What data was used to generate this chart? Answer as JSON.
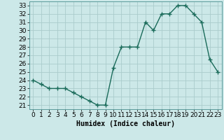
{
  "x": [
    0,
    1,
    2,
    3,
    4,
    5,
    6,
    7,
    8,
    9,
    10,
    11,
    12,
    13,
    14,
    15,
    16,
    17,
    18,
    19,
    20,
    21,
    22,
    23
  ],
  "y": [
    24,
    23.5,
    23,
    23,
    23,
    22.5,
    22,
    21.5,
    21,
    21,
    25.5,
    28,
    28,
    28,
    31,
    30,
    32,
    32,
    33,
    33,
    32,
    31,
    26.5,
    25
  ],
  "line_color": "#1a6b5a",
  "marker": "+",
  "marker_size": 4,
  "marker_lw": 1.0,
  "bg_color": "#cce8e8",
  "grid_major_color": "#aacccc",
  "grid_minor_color": "#cce0e0",
  "xlabel": "Humidex (Indice chaleur)",
  "xlim": [
    -0.5,
    23.5
  ],
  "ylim": [
    20.5,
    33.5
  ],
  "yticks": [
    21,
    22,
    23,
    24,
    25,
    26,
    27,
    28,
    29,
    30,
    31,
    32,
    33
  ],
  "xticks": [
    0,
    1,
    2,
    3,
    4,
    5,
    6,
    7,
    8,
    9,
    10,
    11,
    12,
    13,
    14,
    15,
    16,
    17,
    18,
    19,
    20,
    21,
    22,
    23
  ],
  "xlabel_fontsize": 7,
  "tick_fontsize": 6.5,
  "linewidth": 1.0
}
